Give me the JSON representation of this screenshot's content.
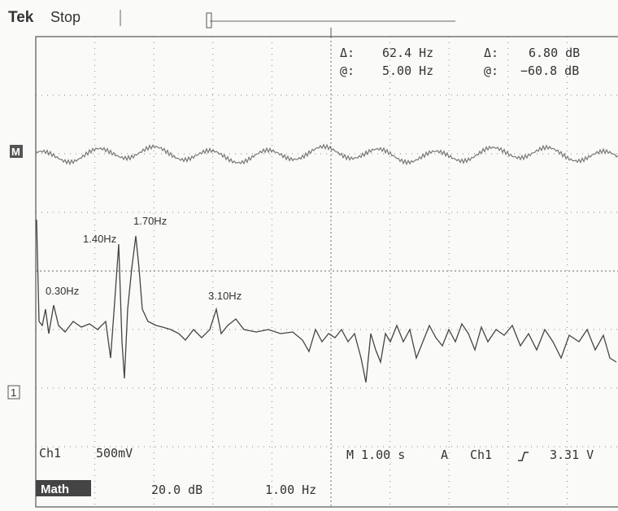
{
  "header": {
    "brand": "Tek",
    "state": "Stop"
  },
  "cursor_readout": {
    "delta_label_1": "Δ:",
    "delta_freq": "62.4 Hz",
    "delta_label_2": "Δ:",
    "delta_db": "6.80 dB",
    "at_label_1": "@:",
    "at_freq": "5.00 Hz",
    "at_label_2": "@:",
    "at_db": "−60.8 dB"
  },
  "markers": {
    "math": "M",
    "channel1": "1"
  },
  "annotations": {
    "peak_1": "1.40Hz",
    "peak_2": "1.70Hz",
    "peak_3": "0.30Hz",
    "peak_4": "3.10Hz"
  },
  "status": {
    "ch1": "Ch1",
    "ch1_scale": "500mV",
    "timebase": "M 1.00 s",
    "trigger_mode": "A",
    "trigger_source": "Ch1",
    "trigger_level": "3.31 V",
    "math": "Math",
    "math_scale": "20.0 dB",
    "math_freq": "1.00 Hz"
  }
}
